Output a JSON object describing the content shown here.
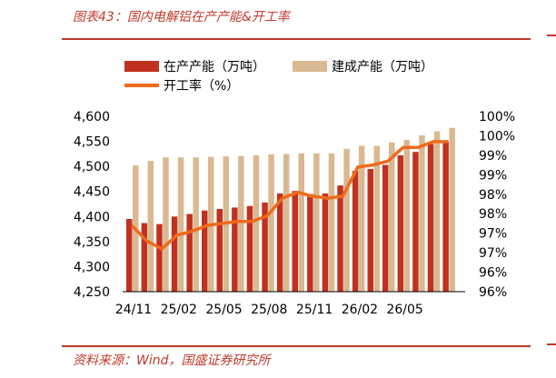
{
  "header": {
    "title": "图表43：国内电解铝在产产能&开工率"
  },
  "footer": {
    "source": "资料来源：Wind，国盛证券研究所"
  },
  "colors": {
    "production": "#c1311f",
    "built": "#d9b992",
    "rate": "#ef6a1a",
    "accent": "#c0392b"
  },
  "chart_data": {
    "type": "bar",
    "title": "",
    "legend": [
      {
        "name": "在产产能（万吨）",
        "symbol": "bar",
        "color": "#c1311f"
      },
      {
        "name": "建成产能（万吨）",
        "symbol": "bar",
        "color": "#d9b992"
      },
      {
        "name": "开工率（%）",
        "symbol": "line",
        "color": "#ef6a1a"
      }
    ],
    "x_tick_labels": [
      "24/11",
      "25/02",
      "25/05",
      "25/08",
      "25/11",
      "26/02",
      "26/05"
    ],
    "left_axis": {
      "ylim": [
        4250,
        4600
      ],
      "ticks": [
        "4,250",
        "4,300",
        "4,350",
        "4,400",
        "4,450",
        "4,500",
        "4,550",
        "4,600"
      ]
    },
    "right_axis": {
      "ylim": [
        96,
        100.5
      ],
      "ticks": [
        "96%",
        "96%",
        "97%",
        "97%",
        "98%",
        "98%",
        "99%",
        "99%",
        "100%",
        "100%"
      ]
    },
    "series": [
      {
        "name": "在产产能（万吨）",
        "axis": "left",
        "values": [
          4395,
          4387,
          4385,
          4400,
          4405,
          4412,
          4415,
          4418,
          4421,
          4428,
          4446,
          4451,
          4445,
          4446,
          4462,
          4491,
          4495,
          4503,
          4522,
          4529,
          4545,
          4550
        ]
      },
      {
        "name": "建成产能（万吨）",
        "axis": "left",
        "values": [
          4502,
          4511,
          4518,
          4518,
          4518,
          4519,
          4520,
          4521,
          4522,
          4524,
          4525,
          4526,
          4526,
          4526,
          4535,
          4541,
          4541,
          4548,
          4553,
          4562,
          4570,
          4577
        ]
      },
      {
        "name": "开工率（%）",
        "axis": "right",
        "values": [
          97.7,
          97.3,
          97.1,
          97.45,
          97.55,
          97.7,
          97.75,
          97.8,
          97.8,
          97.95,
          98.4,
          98.55,
          98.45,
          98.4,
          98.45,
          99.2,
          99.25,
          99.35,
          99.7,
          99.7,
          99.85,
          99.85
        ]
      }
    ]
  }
}
